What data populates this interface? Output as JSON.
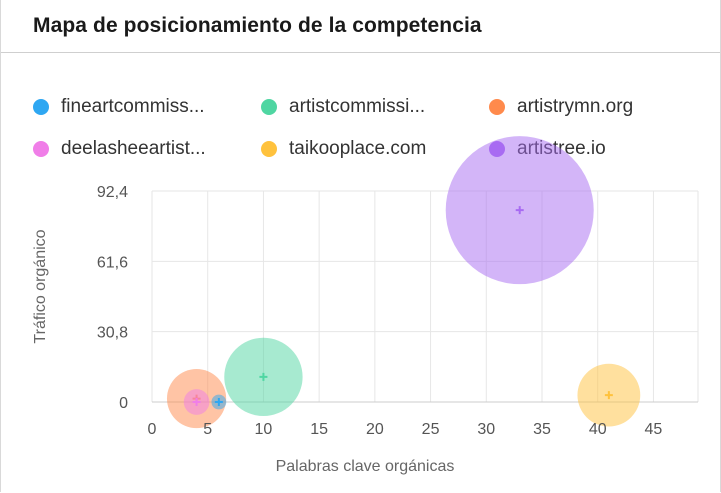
{
  "header": {
    "title": "Mapa de posicionamiento de la competencia"
  },
  "legend": [
    {
      "label": "fineartcommiss...",
      "color": "#2ea7f2"
    },
    {
      "label": "artistcommissi...",
      "color": "#4fd6a2"
    },
    {
      "label": "artistrymn.org",
      "color": "#ff8a4c"
    },
    {
      "label": "deelasheeartist...",
      "color": "#f07ee8"
    },
    {
      "label": "taikooplace.com",
      "color": "#ffc23d"
    },
    {
      "label": "artistree.io",
      "color": "#a86bf2"
    }
  ],
  "chart_data": {
    "type": "scatter",
    "title": "Mapa de posicionamiento de la competencia",
    "xlabel": "Palabras clave orgánicas",
    "ylabel": "Tráfico orgánico",
    "xlim": [
      0,
      49
    ],
    "ylim": [
      0,
      92.4
    ],
    "x_ticks": [
      "0",
      "5",
      "10",
      "15",
      "20",
      "25",
      "30",
      "35",
      "40",
      "45"
    ],
    "y_ticks": [
      "0",
      "30,8",
      "61,6",
      "92,4"
    ],
    "grid": true,
    "legend_position": "top",
    "series": [
      {
        "name": "fineartcommiss...",
        "x": 6,
        "y": 0,
        "size": 1,
        "color": "#2ea7f2"
      },
      {
        "name": "artistcommissi...",
        "x": 10,
        "y": 11,
        "size": 28,
        "color": "#4fd6a2"
      },
      {
        "name": "artistrymn.org",
        "x": 4,
        "y": 1.5,
        "size": 16,
        "color": "#ff8a4c"
      },
      {
        "name": "deelasheeartist...",
        "x": 4,
        "y": 0,
        "size": 3,
        "color": "#f07ee8"
      },
      {
        "name": "taikooplace.com",
        "x": 41,
        "y": 3,
        "size": 18,
        "color": "#ffc23d"
      },
      {
        "name": "artistree.io",
        "x": 33,
        "y": 84,
        "size": 100,
        "color": "#a86bf2"
      }
    ]
  }
}
